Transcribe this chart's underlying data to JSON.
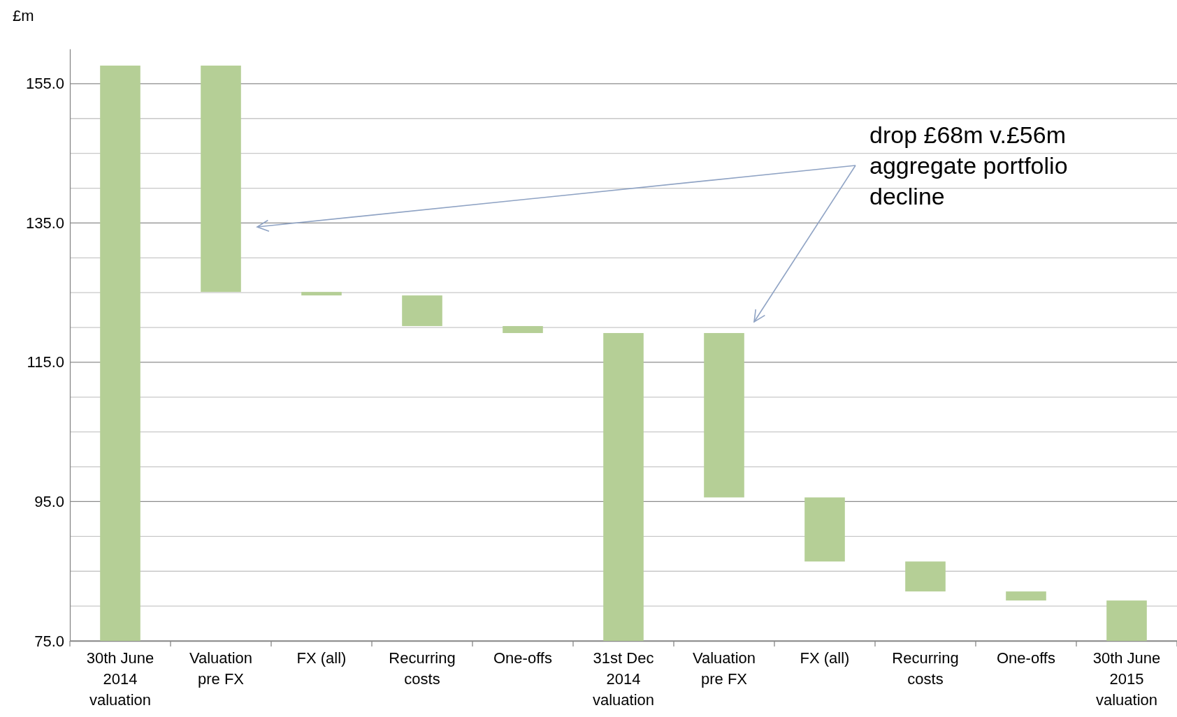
{
  "chart_data": {
    "type": "bar",
    "ylabel": "£m",
    "categories": [
      "30th June 2014 valuation",
      "Valuation pre FX",
      "FX (all)",
      "Recurring costs",
      "One-offs",
      "31st Dec 2014 valuation",
      "Valuation pre FX",
      "FX (all)",
      "Recurring costs",
      "One-offs",
      "30th June 2015 valuation"
    ],
    "base": [
      75,
      157.6,
      125.1,
      124.6,
      120.2,
      75,
      119.2,
      95.6,
      86.4,
      82.1,
      75
    ],
    "values": [
      82.6,
      -32.5,
      -0.5,
      -4.4,
      -1.0,
      44.2,
      -23.6,
      -9.2,
      -4.3,
      -1.3,
      5.8
    ],
    "color": "#b5cf96",
    "ylim": [
      75,
      160
    ],
    "yticks": [
      {
        "value": 75,
        "label": "75.0"
      },
      {
        "value": 80,
        "label": null
      },
      {
        "value": 85,
        "label": null
      },
      {
        "value": 90,
        "label": null
      },
      {
        "value": 95,
        "label": "95.0"
      },
      {
        "value": 100,
        "label": null
      },
      {
        "value": 105,
        "label": null
      },
      {
        "value": 110,
        "label": null
      },
      {
        "value": 115,
        "label": "115.0"
      },
      {
        "value": 120,
        "label": null
      },
      {
        "value": 125,
        "label": null
      },
      {
        "value": 130,
        "label": null
      },
      {
        "value": 135,
        "label": "135.0"
      },
      {
        "value": 140,
        "label": null
      },
      {
        "value": 145,
        "label": null
      },
      {
        "value": 150,
        "label": null
      },
      {
        "value": 155,
        "label": "155.0"
      }
    ],
    "grid": "y",
    "annotations": [
      "drop £68m v.£56m aggregate portfolio decline"
    ]
  }
}
